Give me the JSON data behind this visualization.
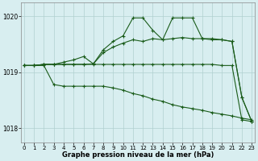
{
  "background_color": "#d8eef0",
  "grid_color": "#b0d0d0",
  "line_color": "#1a5c1a",
  "x_ticks": [
    0,
    1,
    2,
    3,
    4,
    5,
    6,
    7,
    8,
    9,
    10,
    11,
    12,
    13,
    14,
    15,
    16,
    17,
    18,
    19,
    20,
    21,
    22,
    23
  ],
  "y_ticks": [
    1018,
    1019,
    1020
  ],
  "ylim": [
    1017.75,
    1020.25
  ],
  "xlim": [
    -0.3,
    23.3
  ],
  "xlabel": "Graphe pression niveau de la mer (hPa)",
  "lines": [
    {
      "x": [
        0,
        1,
        2,
        3,
        4,
        5,
        6,
        7,
        8,
        9,
        10,
        11,
        12,
        13,
        14,
        15,
        16,
        17,
        18,
        19,
        20,
        21,
        22,
        23
      ],
      "y": [
        1019.12,
        1019.12,
        1019.14,
        1019.14,
        1019.14,
        1019.14,
        1019.14,
        1019.14,
        1019.14,
        1019.14,
        1019.14,
        1019.14,
        1019.14,
        1019.14,
        1019.14,
        1019.14,
        1019.14,
        1019.14,
        1019.14,
        1019.14,
        1019.12,
        1019.12,
        1018.15,
        1018.12
      ]
    },
    {
      "x": [
        0,
        1,
        2,
        3,
        4,
        5,
        6,
        7,
        8,
        9,
        10,
        11,
        12,
        13,
        14,
        15,
        16,
        17,
        18,
        19,
        20,
        21,
        22,
        23
      ],
      "y": [
        1019.12,
        1019.12,
        1019.14,
        1019.14,
        1019.18,
        1019.22,
        1019.28,
        1019.15,
        1019.35,
        1019.45,
        1019.52,
        1019.58,
        1019.55,
        1019.6,
        1019.58,
        1019.6,
        1019.62,
        1019.6,
        1019.6,
        1019.58,
        1019.58,
        1019.55,
        1018.55,
        1018.12
      ]
    },
    {
      "x": [
        0,
        1,
        2,
        3,
        4,
        5,
        6,
        7,
        8,
        9,
        10,
        11,
        12,
        13,
        14,
        15,
        16,
        17,
        18,
        19,
        20,
        21,
        22,
        23
      ],
      "y": [
        1019.12,
        1019.12,
        1019.14,
        1019.14,
        1019.14,
        1019.14,
        1019.14,
        1019.15,
        1019.4,
        1019.55,
        1019.65,
        1019.97,
        1019.97,
        1019.75,
        1019.58,
        1019.97,
        1019.97,
        1019.97,
        1019.6,
        1019.6,
        1019.58,
        1019.55,
        1018.55,
        1018.12
      ]
    },
    {
      "x": [
        0,
        1,
        2,
        3,
        4,
        5,
        6,
        7,
        8,
        9,
        10,
        11,
        12,
        13,
        14,
        15,
        16,
        17,
        18,
        19,
        20,
        21,
        22,
        23
      ],
      "y": [
        1019.12,
        1019.12,
        1019.12,
        1018.78,
        1018.75,
        1018.75,
        1018.75,
        1018.75,
        1018.75,
        1018.72,
        1018.68,
        1018.62,
        1018.58,
        1018.52,
        1018.48,
        1018.42,
        1018.38,
        1018.35,
        1018.32,
        1018.28,
        1018.25,
        1018.22,
        1018.18,
        1018.15
      ]
    }
  ],
  "marker": "+",
  "markersize": 3,
  "linewidth": 0.8
}
